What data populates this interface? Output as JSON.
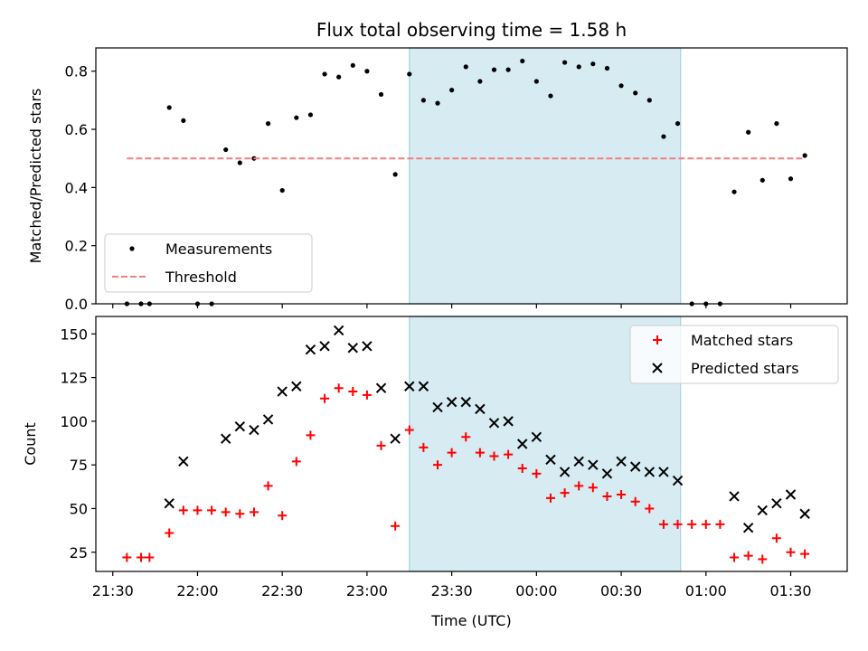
{
  "chart_data": [
    {
      "panel": "top",
      "type": "scatter",
      "title": "Flux total observing time = 1.58 h",
      "xlabel": "",
      "ylabel": "Matched/Predicted stars",
      "ylim": [
        0,
        0.88
      ],
      "yticks": [
        0.0,
        0.2,
        0.4,
        0.6,
        0.8
      ],
      "ytick_labels": [
        "0.0",
        "0.2",
        "0.4",
        "0.6",
        "0.8"
      ],
      "shaded_interval": [
        "23:15",
        "00:51"
      ],
      "legend": {
        "placement": "lower-left",
        "entries": [
          "Measurements",
          "Threshold"
        ]
      },
      "series": [
        {
          "name": "Measurements",
          "marker": "dot",
          "color": "#000000",
          "points": [
            [
              "21:35",
              0.0
            ],
            [
              "21:40",
              0.0
            ],
            [
              "21:43",
              0.0
            ],
            [
              "21:50",
              0.675
            ],
            [
              "21:55",
              0.63
            ],
            [
              "22:00",
              0.0
            ],
            [
              "22:05",
              0.0
            ],
            [
              "22:10",
              0.53
            ],
            [
              "22:15",
              0.485
            ],
            [
              "22:20",
              0.5
            ],
            [
              "22:25",
              0.62
            ],
            [
              "22:30",
              0.39
            ],
            [
              "22:35",
              0.64
            ],
            [
              "22:40",
              0.65
            ],
            [
              "22:45",
              0.79
            ],
            [
              "22:50",
              0.78
            ],
            [
              "22:55",
              0.82
            ],
            [
              "23:00",
              0.8
            ],
            [
              "23:05",
              0.72
            ],
            [
              "23:10",
              0.445
            ],
            [
              "23:15",
              0.79
            ],
            [
              "23:20",
              0.7
            ],
            [
              "23:25",
              0.69
            ],
            [
              "23:30",
              0.735
            ],
            [
              "23:35",
              0.815
            ],
            [
              "23:40",
              0.765
            ],
            [
              "23:45",
              0.805
            ],
            [
              "23:50",
              0.805
            ],
            [
              "23:55",
              0.835
            ],
            [
              "00:00",
              0.765
            ],
            [
              "00:05",
              0.715
            ],
            [
              "00:10",
              0.83
            ],
            [
              "00:15",
              0.815
            ],
            [
              "00:20",
              0.825
            ],
            [
              "00:25",
              0.81
            ],
            [
              "00:30",
              0.75
            ],
            [
              "00:35",
              0.725
            ],
            [
              "00:40",
              0.7
            ],
            [
              "00:45",
              0.575
            ],
            [
              "00:50",
              0.62
            ],
            [
              "00:55",
              0.0
            ],
            [
              "01:00",
              0.0
            ],
            [
              "01:05",
              0.0
            ],
            [
              "01:10",
              0.385
            ],
            [
              "01:15",
              0.59
            ],
            [
              "01:20",
              0.425
            ],
            [
              "01:25",
              0.62
            ],
            [
              "01:30",
              0.43
            ],
            [
              "01:35",
              0.51
            ]
          ]
        },
        {
          "name": "Threshold",
          "marker": "dashed-line",
          "color": "#f08080",
          "points": [
            [
              "21:35",
              0.5
            ],
            [
              "01:35",
              0.5
            ]
          ]
        }
      ]
    },
    {
      "panel": "bottom",
      "type": "scatter",
      "title": "",
      "xlabel": "Time (UTC)",
      "ylabel": "Count",
      "ylim": [
        14,
        160
      ],
      "yticks": [
        25,
        50,
        75,
        100,
        125,
        150
      ],
      "ytick_labels": [
        "25",
        "50",
        "75",
        "100",
        "125",
        "150"
      ],
      "xlim": [
        "21:24",
        "01:50"
      ],
      "xticks": [
        "21:30",
        "22:00",
        "22:30",
        "23:00",
        "23:30",
        "00:00",
        "00:30",
        "01:00",
        "01:30"
      ],
      "xtick_labels": [
        "21:30",
        "22:00",
        "22:30",
        "23:00",
        "23:30",
        "00:00",
        "00:30",
        "01:00",
        "01:30"
      ],
      "shaded_interval": [
        "23:15",
        "00:51"
      ],
      "legend": {
        "placement": "top-right",
        "entries": [
          "Matched stars",
          "Predicted stars"
        ]
      },
      "series": [
        {
          "name": "Matched stars",
          "marker": "plus",
          "color": "#ff0000",
          "points": [
            [
              "21:35",
              22
            ],
            [
              "21:40",
              22
            ],
            [
              "21:43",
              22
            ],
            [
              "21:50",
              36
            ],
            [
              "21:55",
              49
            ],
            [
              "22:00",
              49
            ],
            [
              "22:05",
              49
            ],
            [
              "22:10",
              48
            ],
            [
              "22:15",
              47
            ],
            [
              "22:20",
              48
            ],
            [
              "22:25",
              63
            ],
            [
              "22:30",
              46
            ],
            [
              "22:35",
              77
            ],
            [
              "22:40",
              92
            ],
            [
              "22:45",
              113
            ],
            [
              "22:50",
              119
            ],
            [
              "22:55",
              117
            ],
            [
              "23:00",
              115
            ],
            [
              "23:05",
              86
            ],
            [
              "23:10",
              40
            ],
            [
              "23:15",
              95
            ],
            [
              "23:20",
              85
            ],
            [
              "23:25",
              75
            ],
            [
              "23:30",
              82
            ],
            [
              "23:35",
              91
            ],
            [
              "23:40",
              82
            ],
            [
              "23:45",
              80
            ],
            [
              "23:50",
              81
            ],
            [
              "23:55",
              73
            ],
            [
              "00:00",
              70
            ],
            [
              "00:05",
              56
            ],
            [
              "00:10",
              59
            ],
            [
              "00:15",
              63
            ],
            [
              "00:20",
              62
            ],
            [
              "00:25",
              57
            ],
            [
              "00:30",
              58
            ],
            [
              "00:35",
              54
            ],
            [
              "00:40",
              50
            ],
            [
              "00:45",
              41
            ],
            [
              "00:50",
              41
            ],
            [
              "00:55",
              41
            ],
            [
              "01:00",
              41
            ],
            [
              "01:05",
              41
            ],
            [
              "01:10",
              22
            ],
            [
              "01:15",
              23
            ],
            [
              "01:20",
              21
            ],
            [
              "01:25",
              33
            ],
            [
              "01:30",
              25
            ],
            [
              "01:35",
              24
            ]
          ]
        },
        {
          "name": "Predicted stars",
          "marker": "x",
          "color": "#000000",
          "points": [
            [
              "21:50",
              53
            ],
            [
              "21:55",
              77
            ],
            [
              "22:10",
              90
            ],
            [
              "22:15",
              97
            ],
            [
              "22:20",
              95
            ],
            [
              "22:25",
              101
            ],
            [
              "22:30",
              117
            ],
            [
              "22:35",
              120
            ],
            [
              "22:40",
              141
            ],
            [
              "22:45",
              143
            ],
            [
              "22:50",
              152
            ],
            [
              "22:55",
              142
            ],
            [
              "23:00",
              143
            ],
            [
              "23:05",
              119
            ],
            [
              "23:10",
              90
            ],
            [
              "23:15",
              120
            ],
            [
              "23:20",
              120
            ],
            [
              "23:25",
              108
            ],
            [
              "23:30",
              111
            ],
            [
              "23:35",
              111
            ],
            [
              "23:40",
              107
            ],
            [
              "23:45",
              99
            ],
            [
              "23:50",
              100
            ],
            [
              "23:55",
              87
            ],
            [
              "00:00",
              91
            ],
            [
              "00:05",
              78
            ],
            [
              "00:10",
              71
            ],
            [
              "00:15",
              77
            ],
            [
              "00:20",
              75
            ],
            [
              "00:25",
              70
            ],
            [
              "00:30",
              77
            ],
            [
              "00:35",
              74
            ],
            [
              "00:40",
              71
            ],
            [
              "00:45",
              71
            ],
            [
              "00:50",
              66
            ],
            [
              "01:10",
              57
            ],
            [
              "01:15",
              39
            ],
            [
              "01:20",
              49
            ],
            [
              "01:25",
              53
            ],
            [
              "01:30",
              58
            ],
            [
              "01:35",
              47
            ]
          ]
        }
      ]
    }
  ]
}
